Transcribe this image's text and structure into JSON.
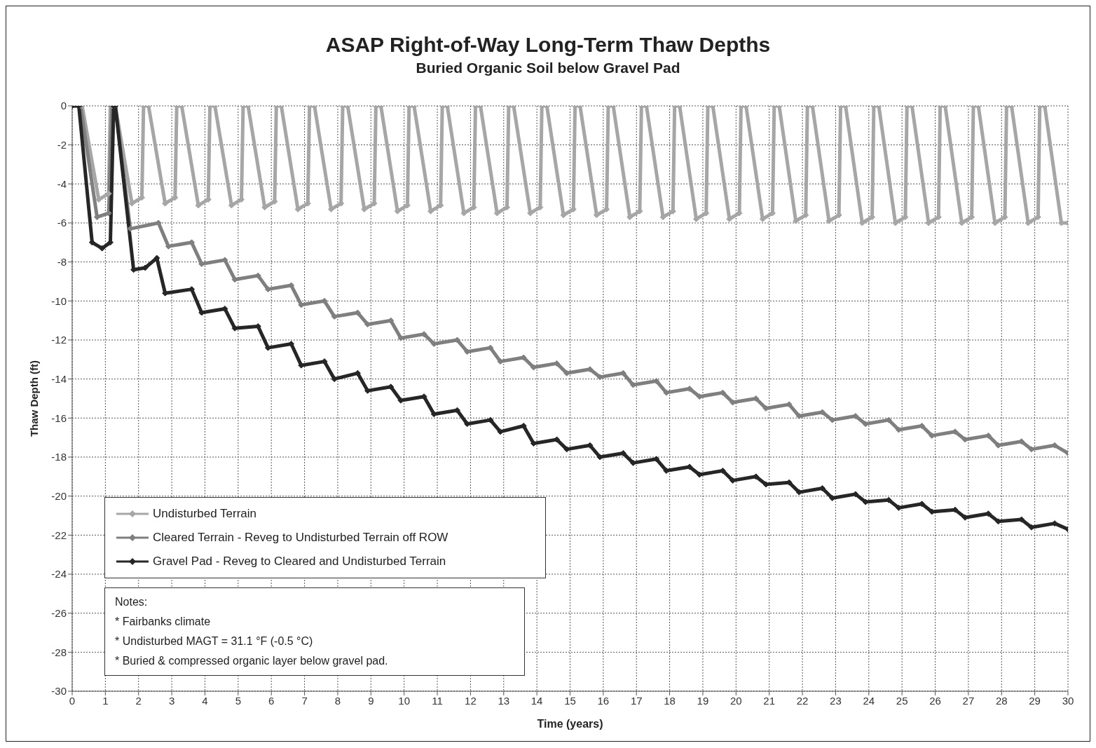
{
  "chart_data": {
    "type": "line",
    "title": "ASAP Right-of-Way Long-Term Thaw Depths",
    "subtitle": "Buried Organic Soil below Gravel Pad",
    "xlabel": "Time (years)",
    "ylabel": "Thaw Depth (ft)",
    "xlim": [
      0,
      30
    ],
    "xticks": [
      0,
      1,
      2,
      3,
      4,
      5,
      6,
      7,
      8,
      9,
      10,
      11,
      12,
      13,
      14,
      15,
      16,
      17,
      18,
      19,
      20,
      21,
      22,
      23,
      24,
      25,
      26,
      27,
      28,
      29,
      30
    ],
    "ylim": [
      -30,
      0
    ],
    "yticks": [
      -30,
      -28,
      -26,
      -24,
      -22,
      -20,
      -18,
      -16,
      -14,
      -12,
      -10,
      -8,
      -6,
      -4,
      -2,
      0
    ],
    "grid": true,
    "legend": "bottom left",
    "marker": "diamond",
    "line_style": "solid",
    "annotations": [
      "Notes:",
      "* Fairbanks climate",
      "* Undisturbed  MAGT = 31.1 °F (-0.5 °C)",
      "* Buried & compressed organic layer below gravel pad."
    ],
    "series": [
      {
        "name": "Undisturbed Terrain",
        "color": "#a6a6a6",
        "x": [
          0,
          0.3,
          0.8,
          1.1,
          1.15,
          1.3,
          1.8,
          2.1,
          2.15,
          2.3,
          2.8,
          3.1,
          3.15,
          3.3,
          3.8,
          4.1,
          4.15,
          4.3,
          4.8,
          5.1,
          5.15,
          5.3,
          5.8,
          6.1,
          6.15,
          6.3,
          6.8,
          7.1,
          7.15,
          7.3,
          7.8,
          8.1,
          8.15,
          8.3,
          8.8,
          9.1,
          9.15,
          9.3,
          9.8,
          10.1,
          10.15,
          10.3,
          10.8,
          11.1,
          11.15,
          11.3,
          11.8,
          12.1,
          12.15,
          12.3,
          12.8,
          13.1,
          13.15,
          13.3,
          13.8,
          14.1,
          14.15,
          14.3,
          14.8,
          15.1,
          15.15,
          15.3,
          15.8,
          16.1,
          16.15,
          16.3,
          16.8,
          17.1,
          17.15,
          17.3,
          17.8,
          18.1,
          18.15,
          18.3,
          18.8,
          19.1,
          19.15,
          19.3,
          19.8,
          20.1,
          20.15,
          20.3,
          20.8,
          21.1,
          21.15,
          21.3,
          21.8,
          22.1,
          22.15,
          22.3,
          22.8,
          23.1,
          23.15,
          23.3,
          23.8,
          24.1,
          24.15,
          24.3,
          24.8,
          25.1,
          25.15,
          25.3,
          25.8,
          26.1,
          26.15,
          26.3,
          26.8,
          27.1,
          27.15,
          27.3,
          27.8,
          28.1,
          28.15,
          28.3,
          28.8,
          29.1,
          29.15,
          29.3,
          29.8,
          30
        ],
        "values": [
          0,
          0,
          -4.8,
          -4.5,
          0,
          0,
          -5.0,
          -4.7,
          0,
          0,
          -5.0,
          -4.7,
          0,
          0,
          -5.1,
          -4.8,
          0,
          0,
          -5.1,
          -4.8,
          0,
          0,
          -5.2,
          -4.9,
          0,
          0,
          -5.3,
          -5.0,
          0,
          0,
          -5.3,
          -5.0,
          0,
          0,
          -5.3,
          -5.0,
          0,
          0,
          -5.4,
          -5.1,
          0,
          0,
          -5.4,
          -5.1,
          0,
          0,
          -5.5,
          -5.2,
          0,
          0,
          -5.5,
          -5.2,
          0,
          0,
          -5.5,
          -5.2,
          0,
          0,
          -5.6,
          -5.3,
          0,
          0,
          -5.6,
          -5.3,
          0,
          0,
          -5.7,
          -5.4,
          0,
          0,
          -5.7,
          -5.4,
          0,
          0,
          -5.8,
          -5.5,
          0,
          0,
          -5.8,
          -5.5,
          0,
          0,
          -5.8,
          -5.5,
          0,
          0,
          -5.9,
          -5.6,
          0,
          0,
          -5.9,
          -5.6,
          0,
          0,
          -6.0,
          -5.7,
          0,
          0,
          -6.0,
          -5.7,
          0,
          0,
          -6.0,
          -5.7,
          0,
          0,
          -6.0,
          -5.7,
          0,
          0,
          -6.0,
          -5.7,
          0,
          0,
          -6.0,
          -5.7,
          0,
          0,
          -6.0,
          -6.0
        ]
      },
      {
        "name": "Cleared Terrain - Reveg to Undisturbed Terrain off ROW",
        "color": "#7f7f7f",
        "x": [
          0,
          0.25,
          0.75,
          1.1,
          1.2,
          1.3,
          1.75,
          2.6,
          2.9,
          3.6,
          3.9,
          4.6,
          4.9,
          5.6,
          5.9,
          6.6,
          6.9,
          7.6,
          7.9,
          8.6,
          8.9,
          9.6,
          9.9,
          10.6,
          10.9,
          11.6,
          11.9,
          12.6,
          12.9,
          13.6,
          13.9,
          14.6,
          14.9,
          15.6,
          15.9,
          16.6,
          16.9,
          17.6,
          17.9,
          18.6,
          18.9,
          19.6,
          19.9,
          20.6,
          20.9,
          21.6,
          21.9,
          22.6,
          22.9,
          23.6,
          23.9,
          24.6,
          24.9,
          25.6,
          25.9,
          26.6,
          26.9,
          27.6,
          27.9,
          28.6,
          28.9,
          29.6,
          30
        ],
        "values": [
          0,
          0,
          -5.7,
          -5.5,
          0,
          0,
          -6.3,
          -6.0,
          -7.2,
          -7.0,
          -8.1,
          -7.9,
          -8.9,
          -8.7,
          -9.4,
          -9.2,
          -10.2,
          -10.0,
          -10.8,
          -10.6,
          -11.2,
          -11.0,
          -11.9,
          -11.7,
          -12.2,
          -12.0,
          -12.6,
          -12.4,
          -13.1,
          -12.9,
          -13.4,
          -13.2,
          -13.7,
          -13.5,
          -13.9,
          -13.7,
          -14.3,
          -14.1,
          -14.7,
          -14.5,
          -14.9,
          -14.7,
          -15.2,
          -15.0,
          -15.5,
          -15.3,
          -15.9,
          -15.7,
          -16.1,
          -15.9,
          -16.3,
          -16.1,
          -16.6,
          -16.4,
          -16.9,
          -16.7,
          -17.1,
          -16.9,
          -17.4,
          -17.2,
          -17.6,
          -17.4,
          -17.8
        ]
      },
      {
        "name": "Gravel Pad - Reveg to Cleared and Undisturbed Terrain",
        "color": "#262626",
        "x": [
          0,
          0.2,
          0.6,
          0.9,
          1.15,
          1.25,
          1.3,
          1.85,
          2.2,
          2.55,
          2.8,
          3.6,
          3.9,
          4.6,
          4.9,
          5.6,
          5.9,
          6.6,
          6.9,
          7.6,
          7.9,
          8.6,
          8.9,
          9.6,
          9.9,
          10.6,
          10.9,
          11.6,
          11.9,
          12.6,
          12.9,
          13.6,
          13.9,
          14.6,
          14.9,
          15.6,
          15.9,
          16.6,
          16.9,
          17.6,
          17.9,
          18.6,
          18.9,
          19.6,
          19.9,
          20.6,
          20.9,
          21.6,
          21.9,
          22.6,
          22.9,
          23.6,
          23.9,
          24.6,
          24.9,
          25.6,
          25.9,
          26.6,
          26.9,
          27.6,
          27.9,
          28.6,
          28.9,
          29.6,
          30
        ],
        "values": [
          0,
          0,
          -7.0,
          -7.3,
          -7.0,
          0,
          0,
          -8.4,
          -8.3,
          -7.8,
          -9.6,
          -9.4,
          -10.6,
          -10.4,
          -11.4,
          -11.3,
          -12.4,
          -12.2,
          -13.3,
          -13.1,
          -14.0,
          -13.7,
          -14.6,
          -14.4,
          -15.1,
          -14.9,
          -15.8,
          -15.6,
          -16.3,
          -16.1,
          -16.7,
          -16.4,
          -17.3,
          -17.1,
          -17.6,
          -17.4,
          -18.0,
          -17.8,
          -18.3,
          -18.1,
          -18.7,
          -18.5,
          -18.9,
          -18.7,
          -19.2,
          -19.0,
          -19.4,
          -19.3,
          -19.8,
          -19.6,
          -20.1,
          -19.9,
          -20.3,
          -20.2,
          -20.6,
          -20.4,
          -20.8,
          -20.7,
          -21.1,
          -20.9,
          -21.3,
          -21.2,
          -21.6,
          -21.4,
          -21.7
        ]
      }
    ]
  }
}
